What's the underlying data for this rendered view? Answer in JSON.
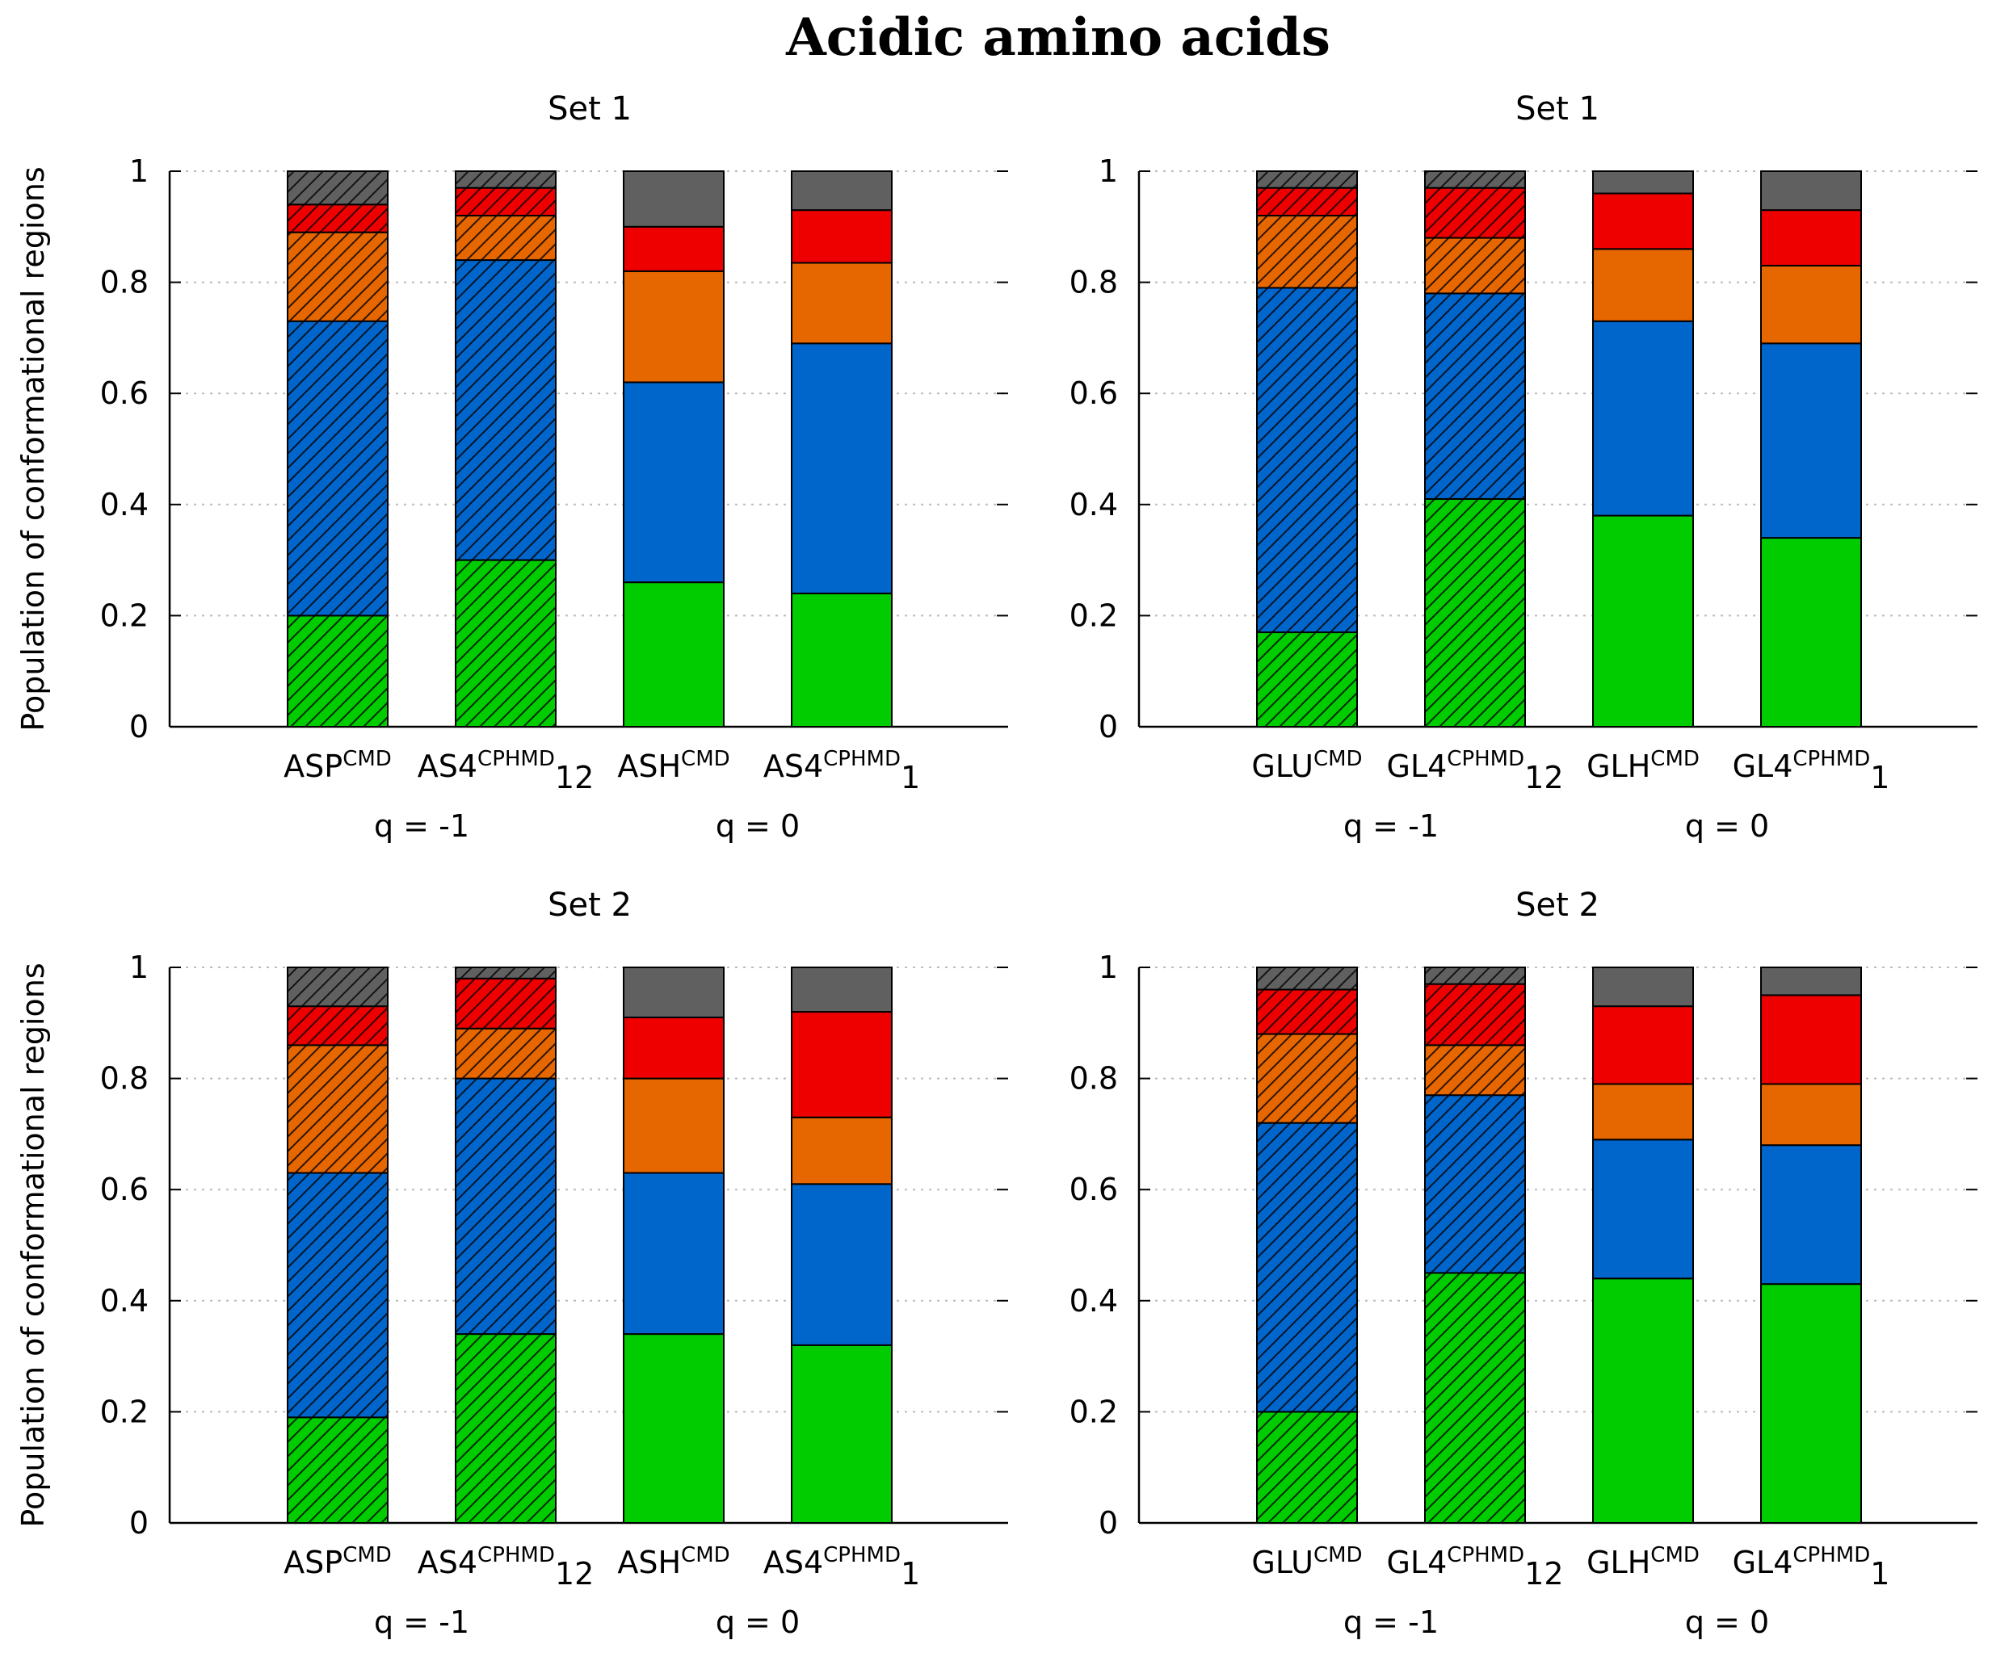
{
  "title": "Acidic amino acids",
  "colors": {
    "green": "#00cc00",
    "blue": "#0066cc",
    "orange": "#e66600",
    "red": "#ee0000",
    "gray": "#606060",
    "stroke": "#000000",
    "grid": "#bbbbbb"
  },
  "region_order": [
    "green",
    "blue",
    "orange",
    "red",
    "gray"
  ],
  "chart_data": [
    {
      "type": "bar",
      "stacked": true,
      "title": "Set 1",
      "ylabel": "Population of conformational regions",
      "ylim": [
        0,
        1
      ],
      "yticks": [
        "0",
        "0.2",
        "0.4",
        "0.6",
        "0.8",
        "1"
      ],
      "categories": [
        {
          "base": "ASP",
          "sup": "CMD",
          "sub": "",
          "hatched": true,
          "values": [
            0.2,
            0.53,
            0.16,
            0.05,
            0.06
          ]
        },
        {
          "base": "AS4",
          "sup": "CPHMD",
          "sub": "12",
          "hatched": true,
          "values": [
            0.3,
            0.54,
            0.08,
            0.05,
            0.03
          ]
        },
        {
          "base": "ASH",
          "sup": "CMD",
          "sub": "",
          "hatched": false,
          "values": [
            0.26,
            0.36,
            0.2,
            0.08,
            0.1
          ]
        },
        {
          "base": "AS4",
          "sup": "CPHMD",
          "sub": "1",
          "hatched": false,
          "values": [
            0.24,
            0.45,
            0.145,
            0.095,
            0.07
          ]
        }
      ],
      "groups": [
        {
          "label": "q = -1",
          "span": [
            0,
            1
          ]
        },
        {
          "label": "q = 0",
          "span": [
            2,
            3
          ]
        }
      ]
    },
    {
      "type": "bar",
      "stacked": true,
      "title": "Set 1",
      "ylabel": "",
      "ylim": [
        0,
        1
      ],
      "yticks": [
        "0",
        "0.2",
        "0.4",
        "0.6",
        "0.8",
        "1"
      ],
      "categories": [
        {
          "base": "GLU",
          "sup": "CMD",
          "sub": "",
          "hatched": true,
          "values": [
            0.17,
            0.62,
            0.13,
            0.05,
            0.03
          ]
        },
        {
          "base": "GL4",
          "sup": "CPHMD",
          "sub": "12",
          "hatched": true,
          "values": [
            0.41,
            0.37,
            0.1,
            0.09,
            0.03
          ]
        },
        {
          "base": "GLH",
          "sup": "CMD",
          "sub": "",
          "hatched": false,
          "values": [
            0.38,
            0.35,
            0.13,
            0.1,
            0.04
          ]
        },
        {
          "base": "GL4",
          "sup": "CPHMD",
          "sub": "1",
          "hatched": false,
          "values": [
            0.34,
            0.35,
            0.14,
            0.1,
            0.07
          ]
        }
      ],
      "groups": [
        {
          "label": "q = -1",
          "span": [
            0,
            1
          ]
        },
        {
          "label": "q = 0",
          "span": [
            2,
            3
          ]
        }
      ]
    },
    {
      "type": "bar",
      "stacked": true,
      "title": "Set 2",
      "ylabel": "Population of conformational regions",
      "ylim": [
        0,
        1
      ],
      "yticks": [
        "0",
        "0.2",
        "0.4",
        "0.6",
        "0.8",
        "1"
      ],
      "categories": [
        {
          "base": "ASP",
          "sup": "CMD",
          "sub": "",
          "hatched": true,
          "values": [
            0.19,
            0.44,
            0.23,
            0.07,
            0.07
          ]
        },
        {
          "base": "AS4",
          "sup": "CPHMD",
          "sub": "12",
          "hatched": true,
          "values": [
            0.34,
            0.46,
            0.09,
            0.09,
            0.02
          ]
        },
        {
          "base": "ASH",
          "sup": "CMD",
          "sub": "",
          "hatched": false,
          "values": [
            0.34,
            0.29,
            0.17,
            0.11,
            0.09
          ]
        },
        {
          "base": "AS4",
          "sup": "CPHMD",
          "sub": "1",
          "hatched": false,
          "values": [
            0.32,
            0.29,
            0.12,
            0.19,
            0.08
          ]
        }
      ],
      "groups": [
        {
          "label": "q = -1",
          "span": [
            0,
            1
          ]
        },
        {
          "label": "q = 0",
          "span": [
            2,
            3
          ]
        }
      ]
    },
    {
      "type": "bar",
      "stacked": true,
      "title": "Set 2",
      "ylabel": "",
      "ylim": [
        0,
        1
      ],
      "yticks": [
        "0",
        "0.2",
        "0.4",
        "0.6",
        "0.8",
        "1"
      ],
      "categories": [
        {
          "base": "GLU",
          "sup": "CMD",
          "sub": "",
          "hatched": true,
          "values": [
            0.2,
            0.52,
            0.16,
            0.08,
            0.04
          ]
        },
        {
          "base": "GL4",
          "sup": "CPHMD",
          "sub": "12",
          "hatched": true,
          "values": [
            0.45,
            0.32,
            0.09,
            0.11,
            0.03
          ]
        },
        {
          "base": "GLH",
          "sup": "CMD",
          "sub": "",
          "hatched": false,
          "values": [
            0.44,
            0.25,
            0.1,
            0.14,
            0.07
          ]
        },
        {
          "base": "GL4",
          "sup": "CPHMD",
          "sub": "1",
          "hatched": false,
          "values": [
            0.43,
            0.25,
            0.11,
            0.16,
            0.05
          ]
        }
      ],
      "groups": [
        {
          "label": "q = -1",
          "span": [
            0,
            1
          ]
        },
        {
          "label": "q = 0",
          "span": [
            2,
            3
          ]
        }
      ]
    }
  ]
}
